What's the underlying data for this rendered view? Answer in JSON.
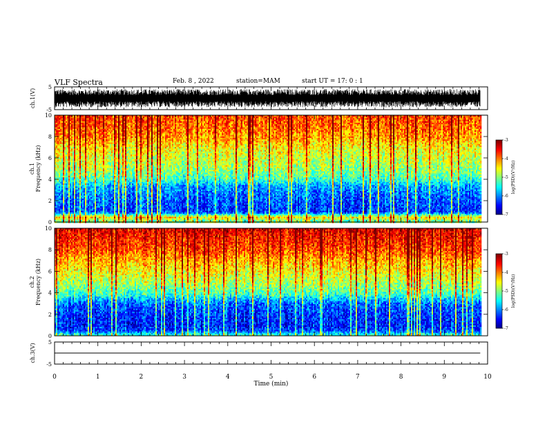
{
  "header": {
    "title": "VLF Spectra",
    "date": "Feb. 8 , 2022",
    "station": "station=MAM",
    "start_ut": "start UT =  17: 0  : 1"
  },
  "chart_data": [
    {
      "type": "line",
      "panel": "waveform ch.1",
      "ylabel": "ch.1(V)",
      "ylim": [
        -5,
        5
      ],
      "yticks": [
        "5",
        "-5"
      ],
      "x": [
        0,
        9.83
      ],
      "description_of_values": "dense broadband waveform filling roughly -4 to 4 V",
      "envelope_min": -4,
      "envelope_max": 4
    },
    {
      "type": "heatmap",
      "panel": "spectrogram ch.1",
      "ylabel_lines": [
        "ch.1",
        "Frequency (kHz)"
      ],
      "ylim": [
        0,
        10
      ],
      "yticks": [
        "0",
        "2",
        "4",
        "6",
        "8",
        "10"
      ],
      "xlim": [
        0,
        10
      ],
      "data_end_x": 9.83,
      "colorbar": {
        "label": "log(PSD)(V²/Hz)",
        "min": -7,
        "max": -3,
        "ticks": [
          "-3",
          "-4",
          "-5",
          "-6",
          "-7"
        ]
      },
      "frequency_profile_kHz": [
        0.2,
        0.5,
        1.0,
        2.0,
        3.0,
        3.5,
        4.0,
        5.0,
        6.0,
        7.0,
        8.0,
        9.0,
        10.0
      ],
      "mean_log_psd": [
        -5.0,
        -4.4,
        -6.3,
        -6.2,
        -6.0,
        -5.8,
        -5.3,
        -4.9,
        -4.7,
        -4.5,
        -4.1,
        -3.9,
        -3.8
      ]
    },
    {
      "type": "heatmap",
      "panel": "spectrogram ch.2",
      "ylabel_lines": [
        "ch.2",
        "Frequency (kHz)"
      ],
      "ylim": [
        0,
        10
      ],
      "yticks": [
        "0",
        "2",
        "4",
        "6",
        "8",
        "10"
      ],
      "xlim": [
        0,
        10
      ],
      "data_end_x": 9.83,
      "colorbar": {
        "label": "log(PSD)(V²/Hz)",
        "min": -7,
        "max": -3,
        "ticks": [
          "-3",
          "-4",
          "-5",
          "-6",
          "-7"
        ]
      },
      "frequency_profile_kHz": [
        0.2,
        0.5,
        1.0,
        2.0,
        3.0,
        3.5,
        4.0,
        5.0,
        6.0,
        7.0,
        8.0,
        9.0,
        10.0
      ],
      "mean_log_psd": [
        -5.4,
        -6.2,
        -6.4,
        -6.3,
        -6.1,
        -5.7,
        -5.2,
        -4.8,
        -4.5,
        -4.2,
        -3.8,
        -3.6,
        -3.4
      ]
    },
    {
      "type": "line",
      "panel": "waveform ch.3",
      "ylabel": "ch.3(V)",
      "ylim": [
        -5,
        5
      ],
      "yticks": [
        "5",
        "-5"
      ],
      "xlim": [
        0,
        10
      ],
      "x": [
        0,
        9.83
      ],
      "values": [
        0,
        0
      ],
      "xlabel": "Time (min)",
      "xticks": [
        "0",
        "1",
        "2",
        "3",
        "4",
        "5",
        "6",
        "7",
        "8",
        "9",
        "10"
      ]
    }
  ]
}
